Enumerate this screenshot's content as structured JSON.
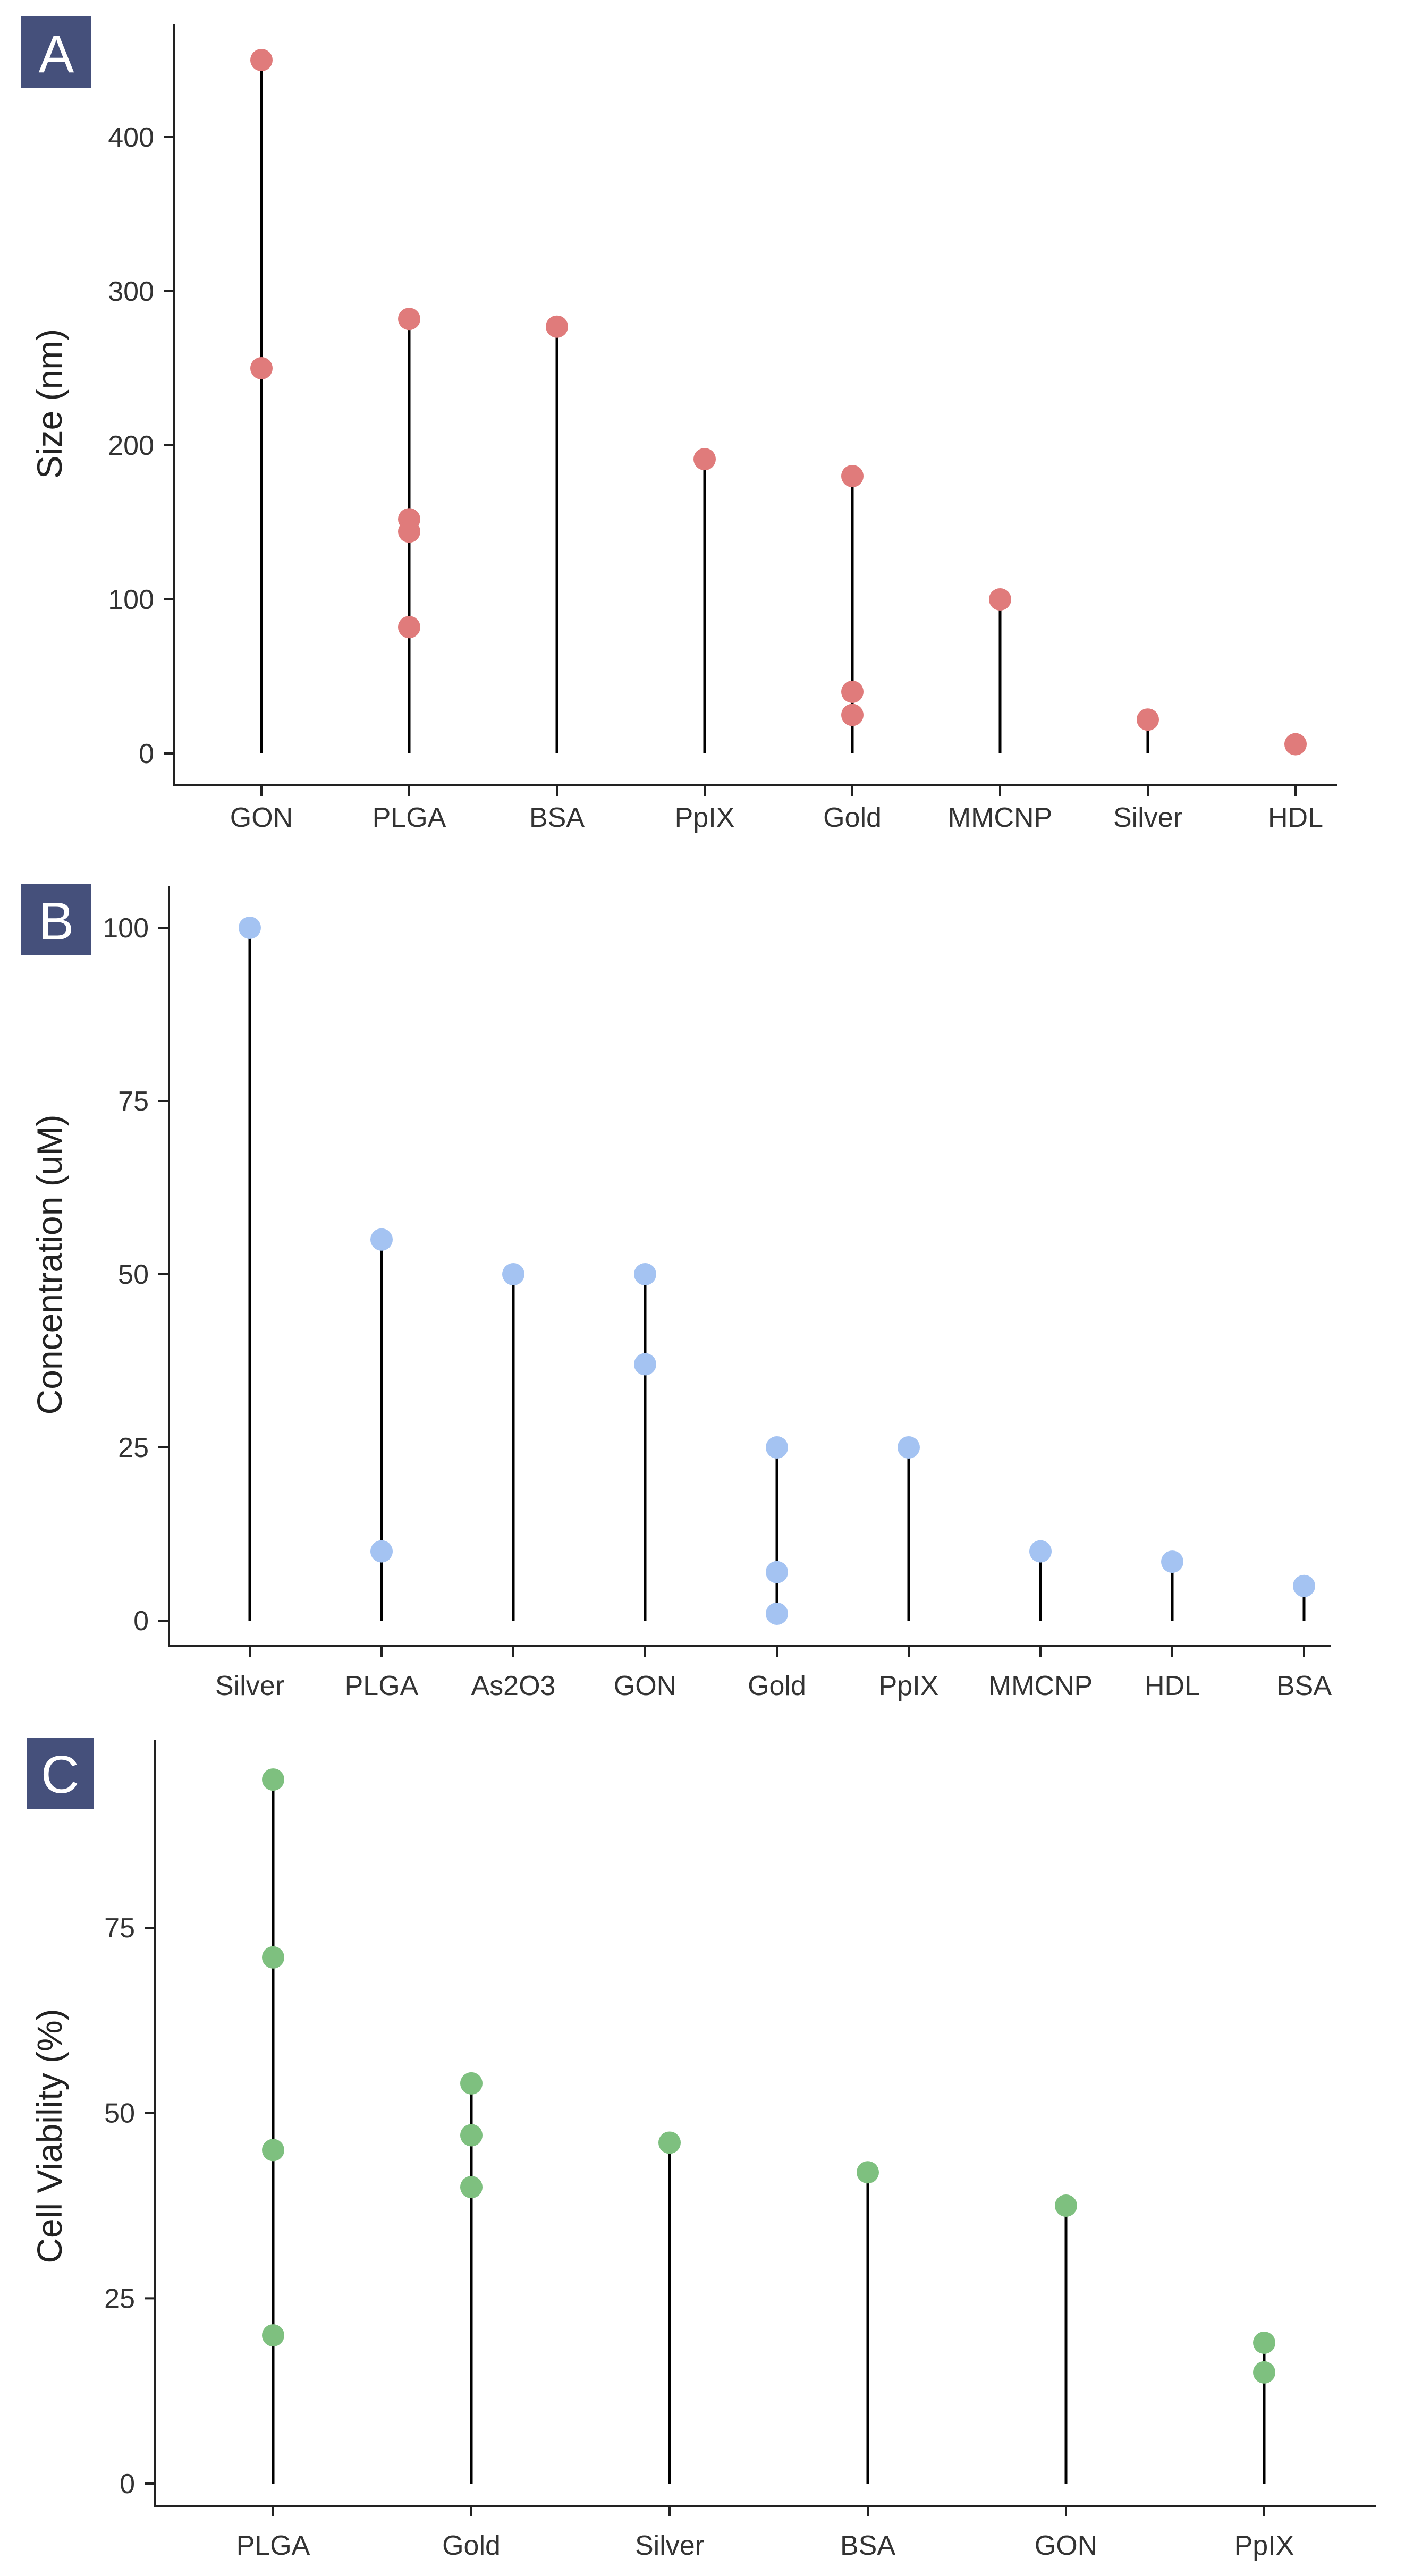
{
  "colors": {
    "badge": "#45507b",
    "panel_a_points": "#e07b7b",
    "panel_b_points": "#a4c3f2",
    "panel_c_points": "#7ec07f"
  },
  "chart_data": [
    {
      "panel": "A",
      "type": "lollipop",
      "ylabel": "Size (nm)",
      "xlabel": "",
      "ylim": [
        -20,
        470
      ],
      "yticks": [
        0,
        100,
        200,
        300,
        400
      ],
      "categories": [
        "GON",
        "PLGA",
        "BSA",
        "PpIX",
        "Gold",
        "MMCNP",
        "Silver",
        "HDL"
      ],
      "points": [
        {
          "category": "GON",
          "values": [
            450,
            250
          ]
        },
        {
          "category": "PLGA",
          "values": [
            282,
            152,
            144,
            82
          ]
        },
        {
          "category": "BSA",
          "values": [
            277
          ]
        },
        {
          "category": "PpIX",
          "values": [
            191
          ]
        },
        {
          "category": "Gold",
          "values": [
            180,
            40,
            25
          ]
        },
        {
          "category": "MMCNP",
          "values": [
            100
          ]
        },
        {
          "category": "Silver",
          "values": [
            22
          ]
        },
        {
          "category": "HDL",
          "values": [
            6
          ]
        }
      ]
    },
    {
      "panel": "B",
      "type": "lollipop",
      "ylabel": "Concentration (uM)",
      "xlabel": "",
      "ylim": [
        -5,
        105
      ],
      "yticks": [
        0,
        25,
        50,
        75,
        100
      ],
      "categories": [
        "Silver",
        "PLGA",
        "As2O3",
        "GON",
        "Gold",
        "PpIX",
        "MMCNP",
        "HDL",
        "BSA"
      ],
      "points": [
        {
          "category": "Silver",
          "values": [
            100
          ]
        },
        {
          "category": "PLGA",
          "values": [
            55,
            10
          ]
        },
        {
          "category": "As2O3",
          "values": [
            50
          ]
        },
        {
          "category": "GON",
          "values": [
            50,
            37
          ]
        },
        {
          "category": "Gold",
          "values": [
            25,
            7,
            1
          ]
        },
        {
          "category": "PpIX",
          "values": [
            25
          ]
        },
        {
          "category": "MMCNP",
          "values": [
            10
          ]
        },
        {
          "category": "HDL",
          "values": [
            8.5
          ]
        },
        {
          "category": "BSA",
          "values": [
            5
          ]
        }
      ]
    },
    {
      "panel": "C",
      "type": "lollipop",
      "ylabel": "Cell Viability (%)",
      "xlabel": "",
      "ylim": [
        -5,
        100
      ],
      "yticks": [
        0,
        25,
        50,
        75
      ],
      "categories": [
        "PLGA",
        "Gold",
        "Silver",
        "BSA",
        "GON",
        "PpIX"
      ],
      "points": [
        {
          "category": "PLGA",
          "values": [
            95,
            71,
            45,
            20
          ]
        },
        {
          "category": "Gold",
          "values": [
            54,
            47,
            40
          ]
        },
        {
          "category": "Silver",
          "values": [
            46
          ]
        },
        {
          "category": "BSA",
          "values": [
            42
          ]
        },
        {
          "category": "GON",
          "values": [
            37.5
          ]
        },
        {
          "category": "PpIX",
          "values": [
            19,
            15
          ]
        }
      ]
    }
  ]
}
